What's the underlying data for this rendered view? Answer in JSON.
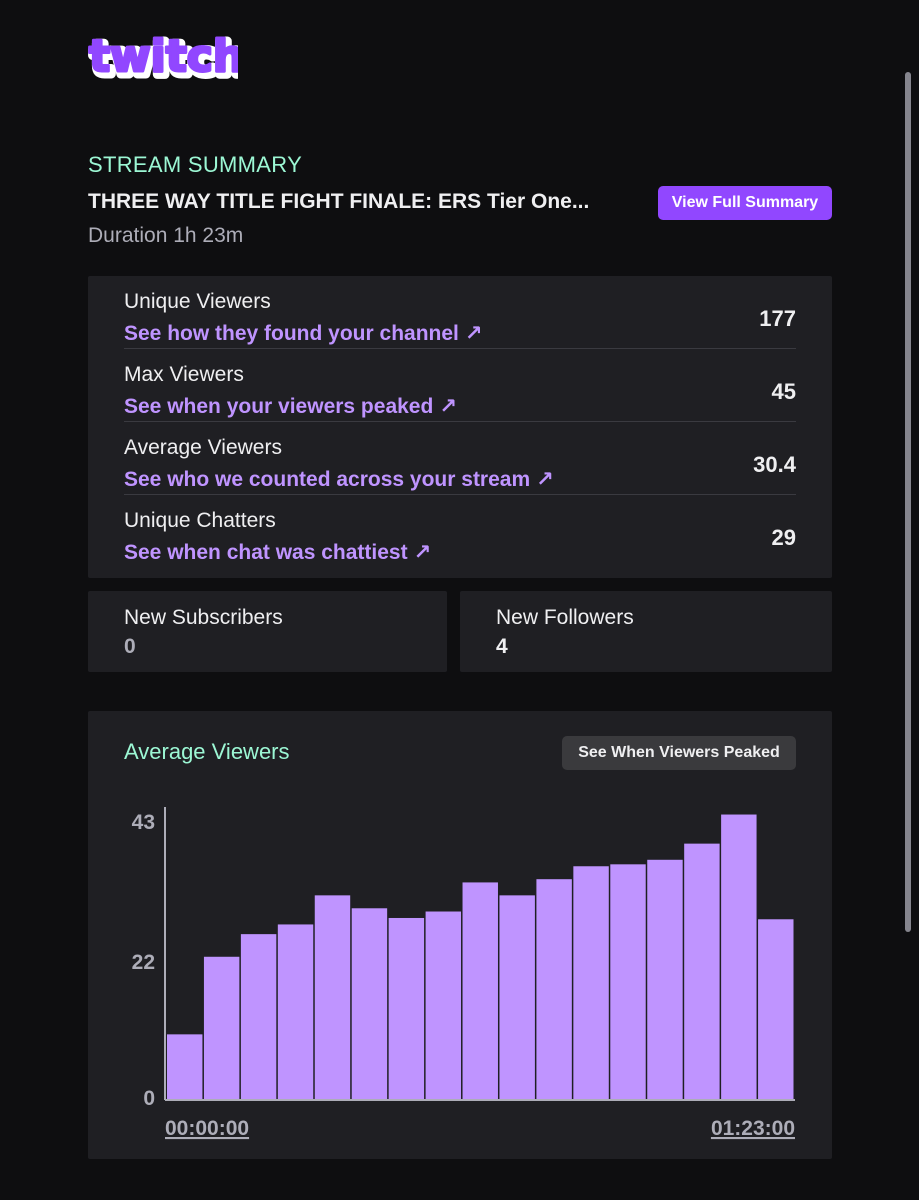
{
  "brand": {
    "logo_text": "twitch",
    "logo_color": "#9147ff"
  },
  "summary": {
    "section_label": "STREAM SUMMARY",
    "title": "THREE WAY TITLE FIGHT FINALE: ERS Tier One...",
    "duration": "Duration 1h 23m",
    "view_button": "View Full Summary"
  },
  "stats": [
    {
      "label": "Unique Viewers",
      "link": "See how they found your channel",
      "value": "177"
    },
    {
      "label": "Max Viewers",
      "link": "See when your viewers peaked",
      "value": "45"
    },
    {
      "label": "Average Viewers",
      "link": "See who we counted across your stream",
      "value": "30.4"
    },
    {
      "label": "Unique Chatters",
      "link": "See when chat was chattiest",
      "value": "29"
    }
  ],
  "subscribers": {
    "label": "New Subscribers",
    "value": "0",
    "color": "#adadb8"
  },
  "followers": {
    "label": "New Followers",
    "value": "4",
    "color": "#efeff1"
  },
  "chart": {
    "title": "Average Viewers",
    "button": "See When Viewers Peaked"
  },
  "chart_data": {
    "type": "bar",
    "y_ticks": [
      "43",
      "22",
      "0"
    ],
    "ylim": [
      0,
      43
    ],
    "x_start_label": "00:00:00",
    "x_end_label": "01:23:00",
    "values": [
      10,
      22,
      25.5,
      27,
      31.5,
      29.5,
      28,
      29,
      33.5,
      31.5,
      34,
      36,
      36.3,
      37,
      39.5,
      44,
      27.8
    ],
    "bar_color": "#bf94ff"
  },
  "colors": {
    "accent": "#9147ff",
    "link": "#bf94ff",
    "teal": "#9cf7d4",
    "card": "#1f1f23",
    "background": "#0e0e10"
  },
  "icons": {
    "link_arrow": "arrow-up-right-icon"
  }
}
